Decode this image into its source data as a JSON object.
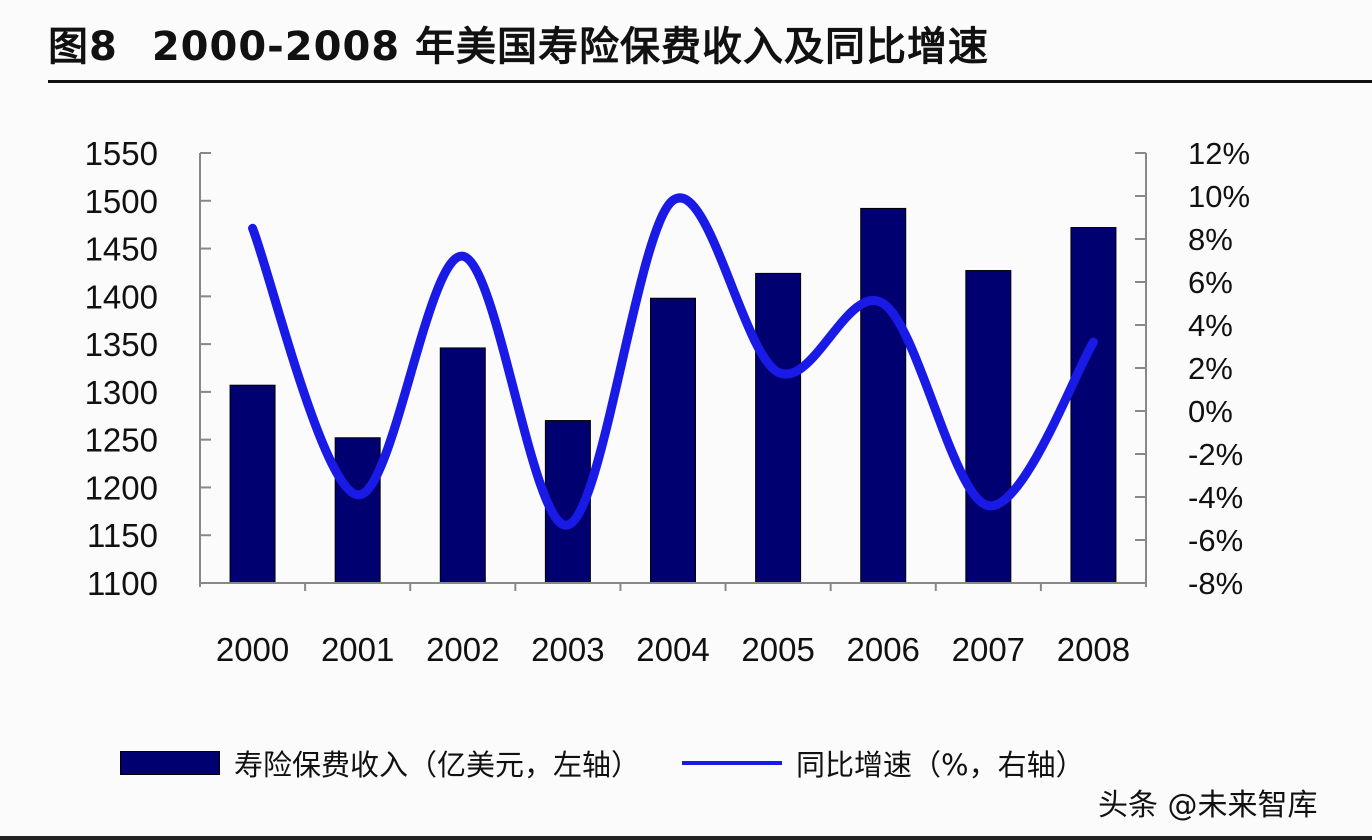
{
  "title": {
    "figure_label": "图8",
    "text": "2000-2008 年美国寿险保费收入及同比增速"
  },
  "legend": {
    "bar_label": "寿险保费收入（亿美元，左轴）",
    "line_label": "同比增速（%，右轴）"
  },
  "watermark": "头条 @未来智库",
  "colors": {
    "bar": "#000070",
    "line": "#1a1ae6",
    "axis": "#888888"
  },
  "chart_data": {
    "type": "bar+line",
    "title": "2000-2008 年美国寿险保费收入及同比增速",
    "categories": [
      "2000",
      "2001",
      "2002",
      "2003",
      "2004",
      "2005",
      "2006",
      "2007",
      "2008"
    ],
    "series": [
      {
        "name": "寿险保费收入（亿美元，左轴）",
        "type": "bar",
        "axis": "left",
        "values": [
          1307,
          1252,
          1346,
          1270,
          1398,
          1424,
          1492,
          1427,
          1472
        ]
      },
      {
        "name": "同比增速（%，右轴）",
        "type": "line",
        "axis": "right",
        "smooth": true,
        "values": [
          8.5,
          -3.9,
          7.2,
          -5.3,
          9.8,
          1.8,
          5.0,
          -4.4,
          3.2
        ]
      }
    ],
    "left_axis": {
      "ylim": [
        1100,
        1550
      ],
      "ticks": [
        "1550",
        "1500",
        "1450",
        "1400",
        "1350",
        "1300",
        "1250",
        "1200",
        "1150",
        "1100"
      ]
    },
    "right_axis": {
      "ylim": [
        -8,
        12
      ],
      "ticks": [
        "12%",
        "10%",
        "8%",
        "6%",
        "4%",
        "2%",
        "0%",
        "-2%",
        "-4%",
        "-6%",
        "-8%"
      ]
    },
    "xlabel": "",
    "ylabel": "",
    "grid": false,
    "legend_position": "bottom"
  }
}
